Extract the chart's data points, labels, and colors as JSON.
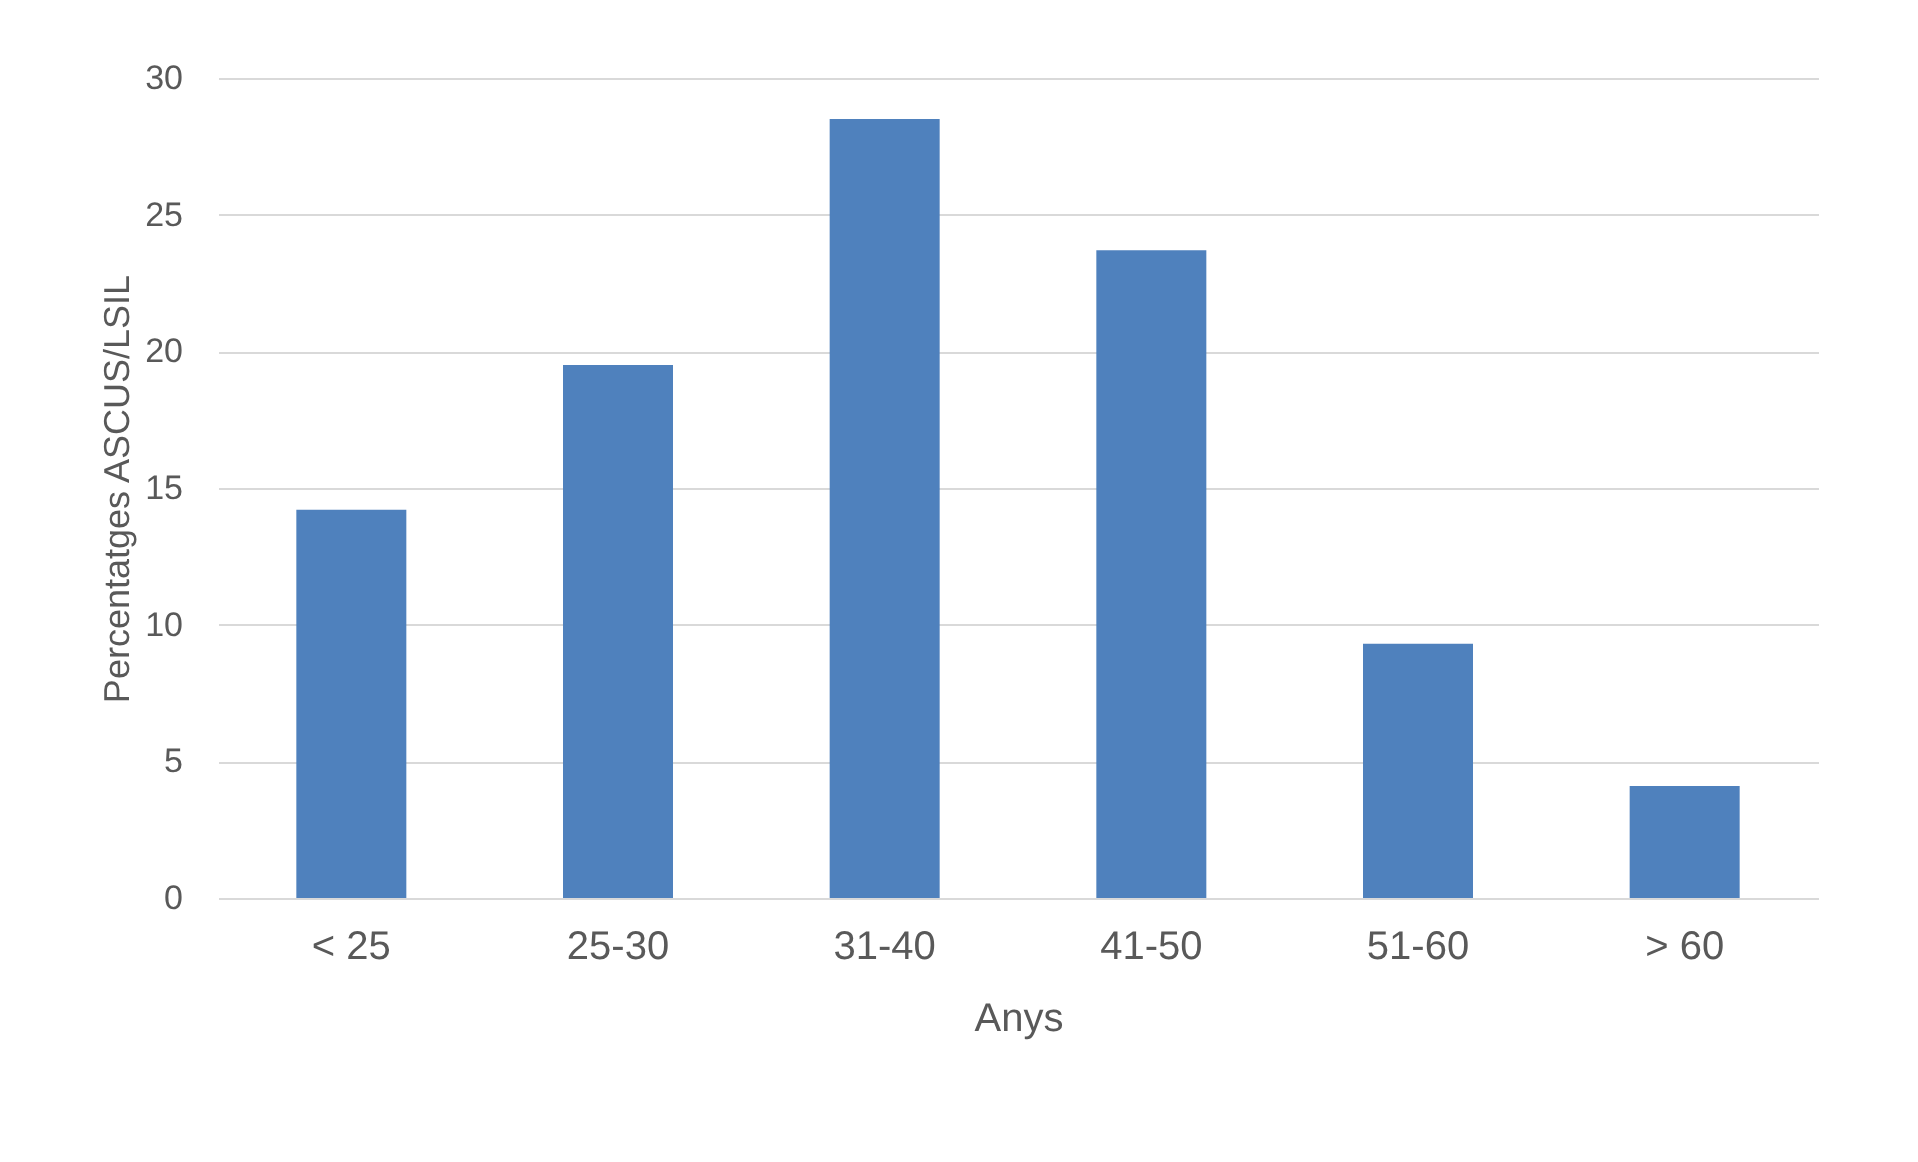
{
  "chart_data": {
    "type": "bar",
    "xlabel": "Anys",
    "ylabel": "Percentatges ASCUS/LSIL",
    "categories": [
      "<  25",
      "25-30",
      "31-40",
      "41-50",
      "51-60",
      ">  60"
    ],
    "values": [
      14.2,
      19.5,
      28.5,
      23.7,
      9.3,
      4.1
    ],
    "color": "#4f81bd",
    "ylim": [
      0,
      30
    ],
    "yticks": [
      0,
      5,
      10,
      15,
      20,
      25,
      30
    ],
    "grid": "y"
  }
}
